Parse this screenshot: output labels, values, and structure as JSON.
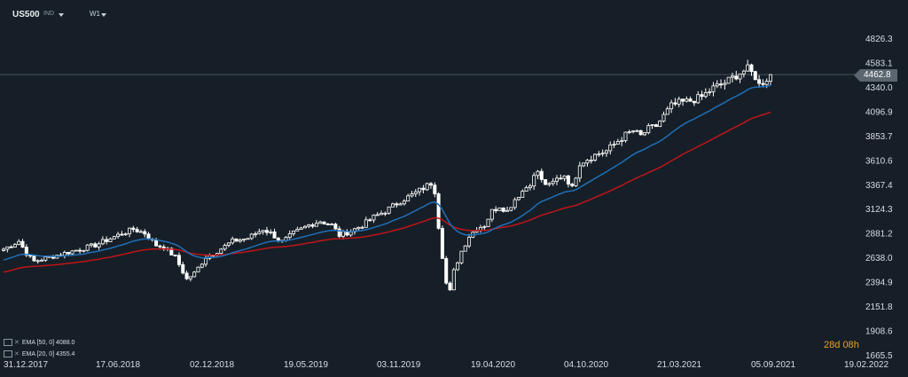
{
  "toolbar": {
    "symbol": "US500",
    "symbol_tag": "IND",
    "timeframe": "W1"
  },
  "price_tag": "4462.8",
  "countdown": {
    "days": "28",
    "d_unit": "d",
    "hours": "08",
    "h_unit": "h"
  },
  "legend": [
    {
      "label": "EMA [50, 0]",
      "value": "4088.0"
    },
    {
      "label": "EMA [20, 0]",
      "value": "4355.4"
    }
  ],
  "colors": {
    "background": "#161f27",
    "ema50": "#c0141a",
    "ema20": "#1f6fb8",
    "candle": "#ffffff",
    "countdown": "#f0a020"
  },
  "chart_data": {
    "type": "line",
    "y_ticks": [
      "4826.3",
      "4583.1",
      "4340.0",
      "4096.9",
      "3853.7",
      "3610.6",
      "3367.4",
      "3124.3",
      "2881.2",
      "2638.0",
      "2394.9",
      "2151.8",
      "1908.6",
      "1665.5"
    ],
    "x_ticks": [
      "31.12.2017",
      "17.06.2018",
      "02.12.2018",
      "19.05.2019",
      "03.11.2019",
      "19.04.2020",
      "04.10.2020",
      "21.03.2021",
      "05.09.2021",
      "19.02.2022"
    ],
    "ylim": [
      1665.5,
      4826.3
    ],
    "current_price": 4462.8,
    "price_anchors": [
      [
        0,
        2720
      ],
      [
        4,
        2800
      ],
      [
        6,
        2680
      ],
      [
        8,
        2600
      ],
      [
        12,
        2640
      ],
      [
        18,
        2700
      ],
      [
        24,
        2760
      ],
      [
        30,
        2860
      ],
      [
        34,
        2920
      ],
      [
        37,
        2880
      ],
      [
        40,
        2760
      ],
      [
        42,
        2740
      ],
      [
        45,
        2640
      ],
      [
        48,
        2420
      ],
      [
        50,
        2480
      ],
      [
        53,
        2640
      ],
      [
        56,
        2700
      ],
      [
        60,
        2800
      ],
      [
        64,
        2830
      ],
      [
        68,
        2920
      ],
      [
        70,
        2880
      ],
      [
        73,
        2790
      ],
      [
        76,
        2880
      ],
      [
        80,
        2960
      ],
      [
        83,
        3000
      ],
      [
        86,
        2960
      ],
      [
        88,
        2860
      ],
      [
        91,
        2900
      ],
      [
        94,
        2960
      ],
      [
        97,
        3040
      ],
      [
        100,
        3100
      ],
      [
        104,
        3200
      ],
      [
        107,
        3260
      ],
      [
        110,
        3330
      ],
      [
        112,
        3380
      ],
      [
        113,
        3300
      ],
      [
        114,
        2950
      ],
      [
        115,
        2650
      ],
      [
        116,
        2380
      ],
      [
        117,
        2300
      ],
      [
        118,
        2500
      ],
      [
        120,
        2700
      ],
      [
        122,
        2850
      ],
      [
        124,
        2930
      ],
      [
        126,
        2960
      ],
      [
        128,
        3100
      ],
      [
        130,
        3150
      ],
      [
        132,
        3100
      ],
      [
        134,
        3220
      ],
      [
        136,
        3300
      ],
      [
        138,
        3380
      ],
      [
        140,
        3500
      ],
      [
        141,
        3400
      ],
      [
        143,
        3350
      ],
      [
        145,
        3420
      ],
      [
        147,
        3460
      ],
      [
        149,
        3330
      ],
      [
        151,
        3580
      ],
      [
        153,
        3620
      ],
      [
        155,
        3660
      ],
      [
        158,
        3700
      ],
      [
        161,
        3800
      ],
      [
        163,
        3860
      ],
      [
        165,
        3900
      ],
      [
        167,
        3850
      ],
      [
        169,
        3920
      ],
      [
        171,
        3950
      ],
      [
        173,
        4050
      ],
      [
        175,
        4150
      ],
      [
        177,
        4180
      ],
      [
        180,
        4200
      ],
      [
        183,
        4240
      ],
      [
        186,
        4330
      ],
      [
        189,
        4380
      ],
      [
        191,
        4430
      ],
      [
        193,
        4480
      ],
      [
        195,
        4520
      ],
      [
        196,
        4480
      ],
      [
        197,
        4440
      ],
      [
        198,
        4360
      ],
      [
        199,
        4390
      ],
      [
        200,
        4420
      ],
      [
        201,
        4462.8
      ]
    ],
    "ema50_end": 4088.0,
    "ema20_end": 4355.4,
    "series": [
      {
        "name": "EMA [50, 0]",
        "end_value": 4088.0
      },
      {
        "name": "EMA [20, 0]",
        "end_value": 4355.4
      }
    ],
    "grid": false
  }
}
